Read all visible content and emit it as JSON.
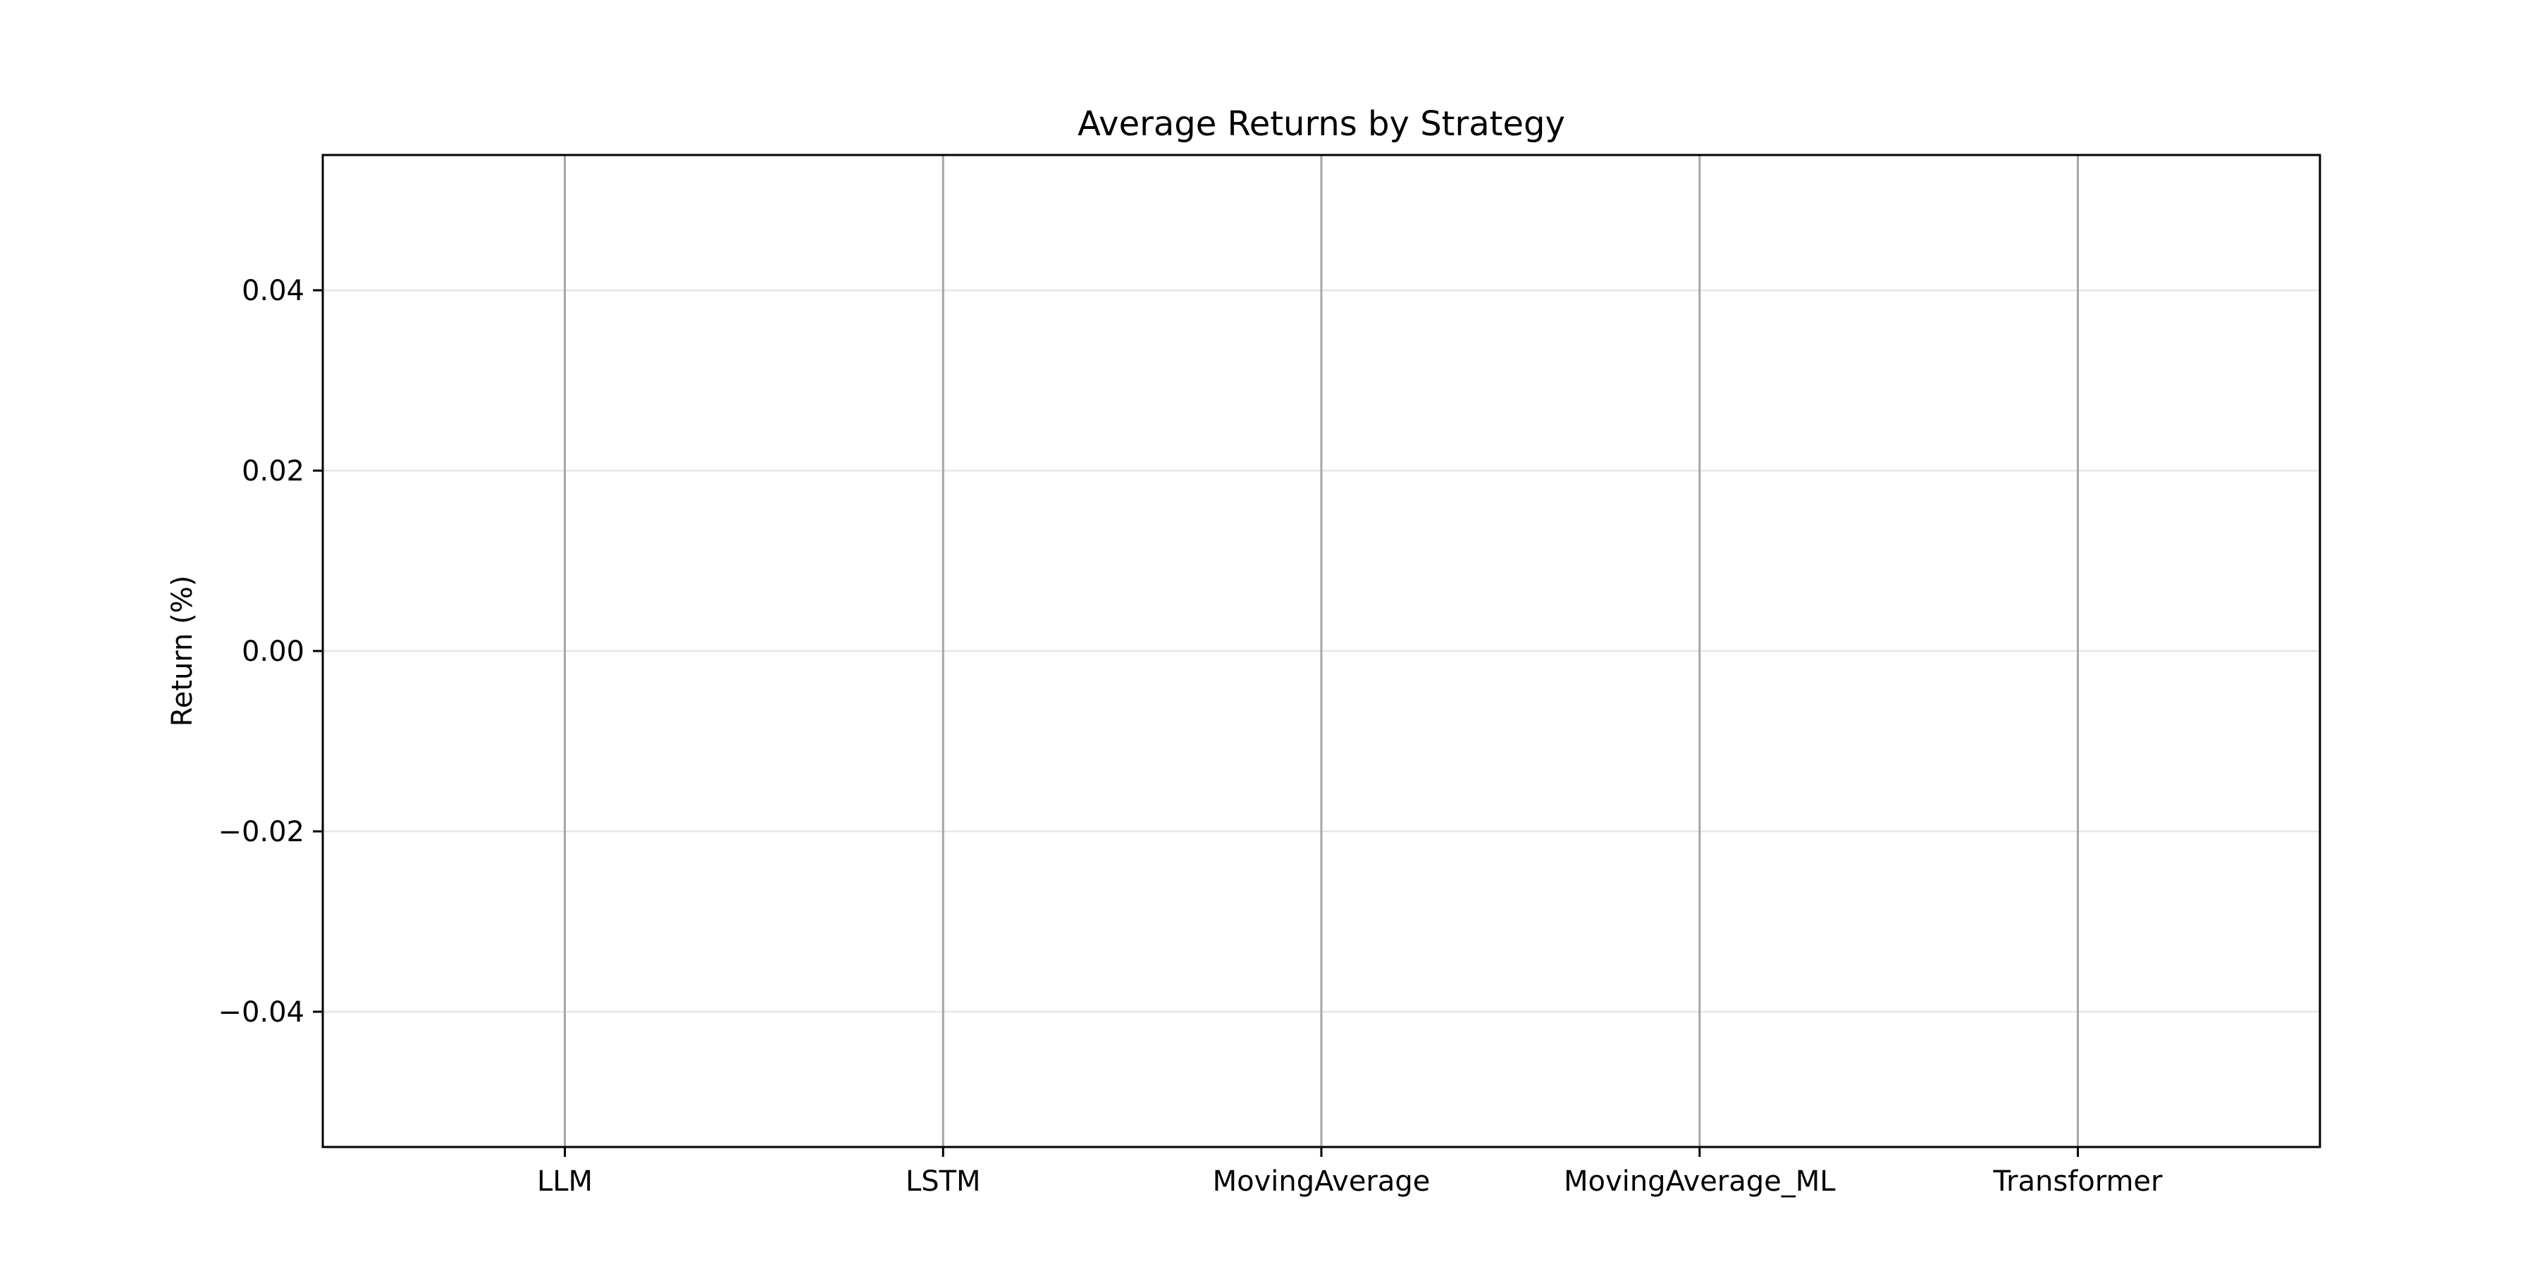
{
  "chart_data": {
    "type": "bar",
    "title": "Average Returns by Strategy",
    "xlabel": "",
    "ylabel": "Return (%)",
    "categories": [
      "LLM",
      "LSTM",
      "MovingAverage",
      "MovingAverage_ML",
      "Transformer"
    ],
    "values": [
      0,
      0,
      0,
      0,
      0
    ],
    "ylim": [
      -0.055,
      0.055
    ],
    "yticks": [
      -0.04,
      -0.02,
      0.0,
      0.02,
      0.04
    ],
    "ytick_labels": [
      "−0.04",
      "−0.02",
      "0.00",
      "0.02",
      "0.04"
    ],
    "grid": {
      "y": true,
      "x": false
    },
    "legend": null,
    "colors": {
      "bar": "#1f77b4",
      "frame": "#000000",
      "grid": "#e6e6e6",
      "category_line": "#a6a6a6"
    }
  }
}
